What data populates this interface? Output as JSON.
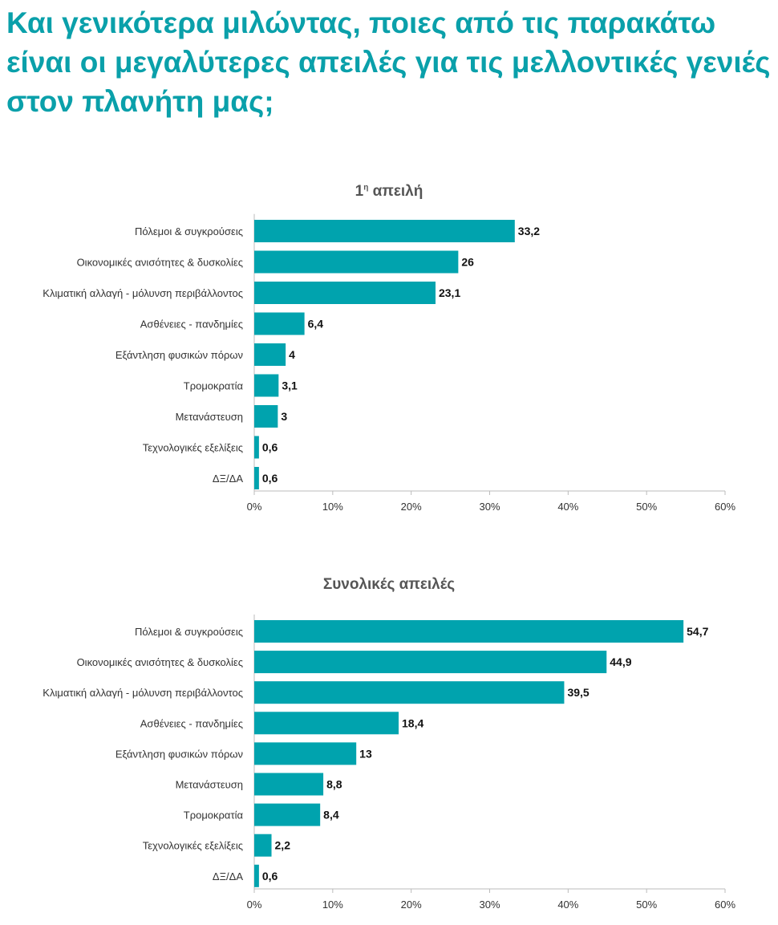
{
  "title": "Και γενικότερα μιλώντας, ποιες από τις παρακάτω είναι οι μεγαλύτερες απειλές για τις μελλοντικές γενιές στον πλανήτη μας;",
  "colors": {
    "bar": "#00a3ae",
    "title": "#0aa0aa"
  },
  "chart_data": [
    {
      "type": "bar",
      "orientation": "horizontal",
      "title": "1",
      "title_sup": "η",
      "title_rest": " απειλή",
      "categories": [
        "Πόλεμοι & συγκρούσεις",
        "Οικονομικές ανισότητες & δυσκολίες",
        "Κλιματική αλλαγή - μόλυνση περιβάλλοντος",
        "Ασθένειες - πανδημίες",
        "Εξάντληση φυσικών πόρων",
        "Τρομοκρατία",
        "Μετανάστευση",
        "Τεχνολογικές εξελίξεις",
        "ΔΞ/ΔΑ"
      ],
      "values": [
        33.2,
        26,
        23.1,
        6.4,
        4,
        3.1,
        3,
        0.6,
        0.6
      ],
      "labels": [
        "33,2",
        "26",
        "23,1",
        "6,4",
        "4",
        "3,1",
        "3",
        "0,6",
        "0,6"
      ],
      "xlim": [
        0,
        60
      ],
      "ticks": [
        "0%",
        "10%",
        "20%",
        "30%",
        "40%",
        "50%",
        "60%"
      ]
    },
    {
      "type": "bar",
      "orientation": "horizontal",
      "title": "Συνολικές απειλές",
      "categories": [
        "Πόλεμοι & συγκρούσεις",
        "Οικονομικές ανισότητες & δυσκολίες",
        "Κλιματική αλλαγή - μόλυνση περιβάλλοντος",
        "Ασθένειες - πανδημίες",
        "Εξάντληση φυσικών πόρων",
        "Μετανάστευση",
        "Τρομοκρατία",
        "Τεχνολογικές εξελίξεις",
        "ΔΞ/ΔΑ"
      ],
      "values": [
        54.7,
        44.9,
        39.5,
        18.4,
        13,
        8.8,
        8.4,
        2.2,
        0.6
      ],
      "labels": [
        "54,7",
        "44,9",
        "39,5",
        "18,4",
        "13",
        "8,8",
        "8,4",
        "2,2",
        "0,6"
      ],
      "xlim": [
        0,
        60
      ],
      "ticks": [
        "0%",
        "10%",
        "20%",
        "30%",
        "40%",
        "50%",
        "60%"
      ]
    }
  ]
}
